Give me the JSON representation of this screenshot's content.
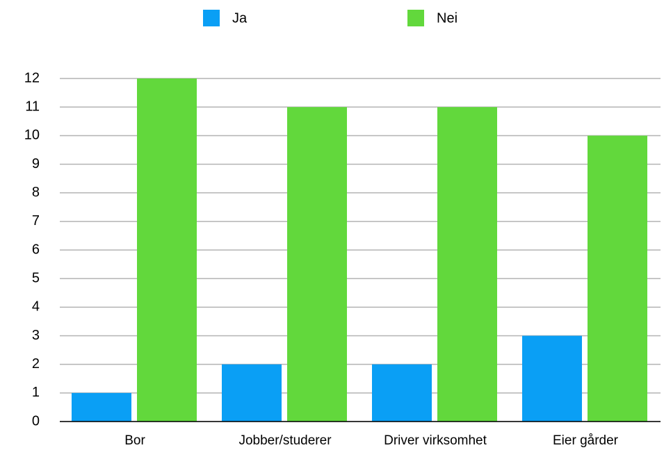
{
  "chart_data": {
    "type": "bar",
    "categories": [
      "Bor",
      "Jobber/studerer",
      "Driver virksomhet",
      "Eier gårder"
    ],
    "series": [
      {
        "name": "Ja",
        "color": "#0a9ff5",
        "values": [
          1,
          2,
          2,
          3
        ]
      },
      {
        "name": "Nei",
        "color": "#62d83c",
        "values": [
          12,
          11,
          11,
          10
        ]
      }
    ],
    "ylim": [
      0,
      12
    ],
    "yticks": [
      0,
      1,
      2,
      3,
      4,
      5,
      6,
      7,
      8,
      9,
      10,
      11,
      12
    ],
    "grid": true,
    "legend": "top"
  }
}
